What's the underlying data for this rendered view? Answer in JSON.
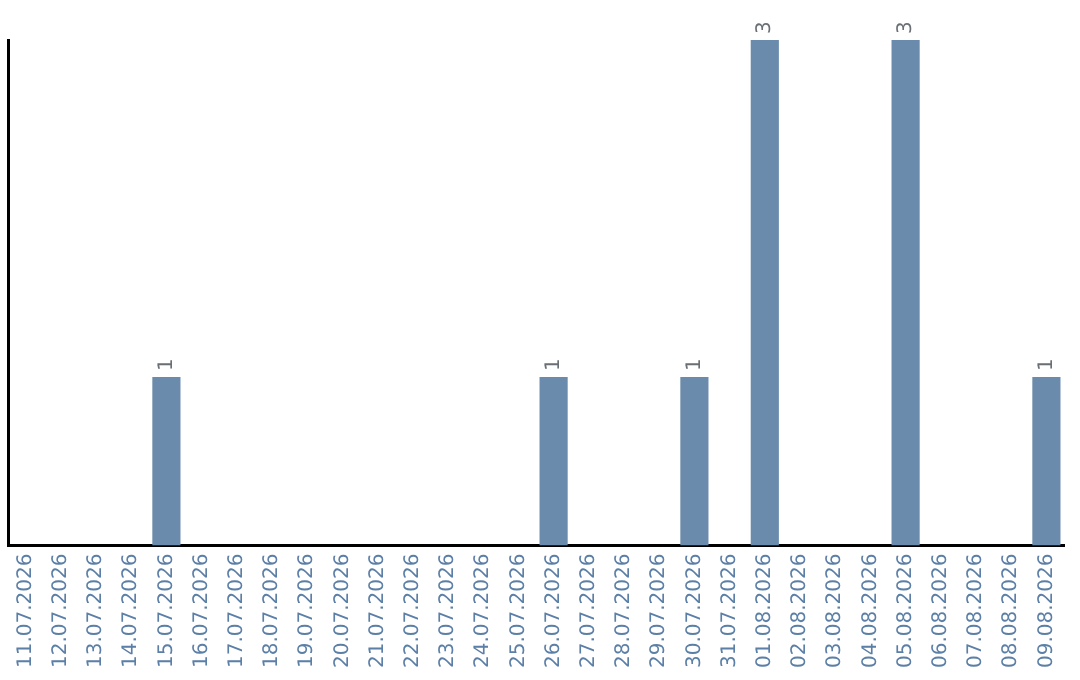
{
  "chart_data": {
    "type": "bar",
    "categories": [
      "11.07.2026",
      "12.07.2026",
      "13.07.2026",
      "14.07.2026",
      "15.07.2026",
      "16.07.2026",
      "17.07.2026",
      "18.07.2026",
      "19.07.2026",
      "20.07.2026",
      "21.07.2026",
      "22.07.2026",
      "23.07.2026",
      "24.07.2026",
      "25.07.2026",
      "26.07.2026",
      "27.07.2026",
      "28.07.2026",
      "29.07.2026",
      "30.07.2026",
      "31.07.2026",
      "01.08.2026",
      "02.08.2026",
      "03.08.2026",
      "04.08.2026",
      "05.08.2026",
      "06.08.2026",
      "07.08.2026",
      "08.08.2026",
      "09.08.2026"
    ],
    "values": [
      0,
      0,
      0,
      0,
      1,
      0,
      0,
      0,
      0,
      0,
      0,
      0,
      0,
      0,
      0,
      1,
      0,
      0,
      0,
      1,
      0,
      3,
      0,
      0,
      0,
      3,
      0,
      0,
      0,
      1
    ],
    "value_labels": [
      null,
      null,
      null,
      null,
      "1",
      null,
      null,
      null,
      null,
      null,
      null,
      null,
      null,
      null,
      null,
      "1",
      null,
      null,
      null,
      "1",
      null,
      "3",
      null,
      null,
      null,
      "3",
      null,
      null,
      null,
      "1"
    ],
    "color": "#6a8bab",
    "ylim": [
      0,
      3
    ],
    "tick_labels": "x",
    "grid": false,
    "legend": false
  }
}
